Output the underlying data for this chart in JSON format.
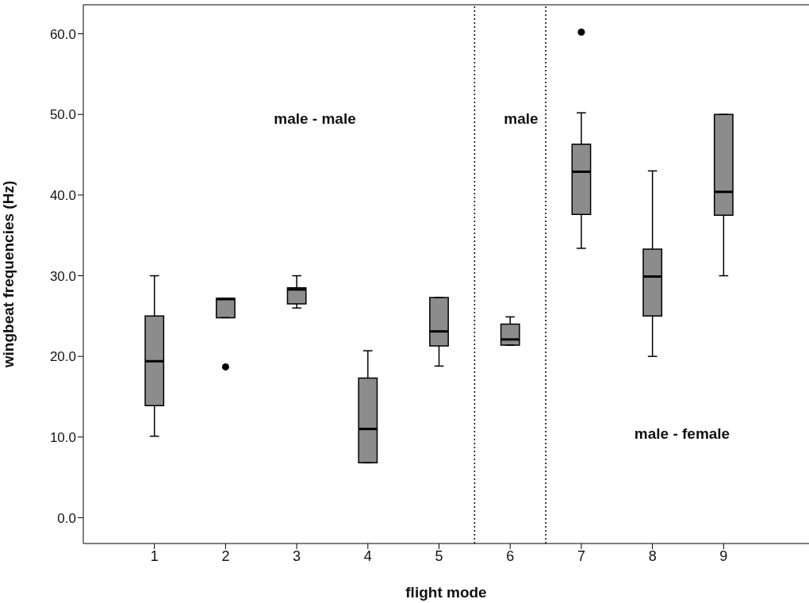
{
  "chart_data": {
    "type": "box",
    "xlabel": "flight mode",
    "ylabel": "wingbeat frequencies (Hz)",
    "x": [
      1,
      2,
      3,
      4,
      5,
      6,
      7,
      8,
      9
    ],
    "color": "#8c8c8c",
    "boxes": [
      {
        "low": 10.1,
        "q1": 13.9,
        "median": 19.4,
        "q3": 25.0,
        "high": 30.0
      },
      {
        "low": 24.8,
        "q1": 24.8,
        "median": 27.1,
        "q3": 27.2,
        "high": 27.2,
        "outliers": [
          18.7
        ]
      },
      {
        "low": 26.0,
        "q1": 26.5,
        "median": 28.3,
        "q3": 28.5,
        "high": 30.0
      },
      {
        "low": 6.8,
        "q1": 6.8,
        "median": 11.0,
        "q3": 17.3,
        "high": 20.7
      },
      {
        "low": 18.8,
        "q1": 21.3,
        "median": 23.1,
        "q3": 27.3,
        "high": 27.3
      },
      {
        "low": 21.4,
        "q1": 21.4,
        "median": 22.1,
        "q3": 24.0,
        "high": 24.9
      },
      {
        "low": 33.4,
        "q1": 37.6,
        "median": 42.9,
        "q3": 46.3,
        "high": 50.2,
        "outliers": [
          60.2
        ]
      },
      {
        "low": 20.0,
        "q1": 25.0,
        "median": 29.9,
        "q3": 33.3,
        "high": 43.0
      },
      {
        "low": 30.0,
        "q1": 37.5,
        "median": 40.4,
        "q3": 50.0,
        "high": 50.0
      }
    ],
    "xlim": [
      0,
      10.2
    ],
    "xticks": [
      1,
      2,
      3,
      4,
      5,
      6,
      7,
      8,
      9
    ],
    "ylim": [
      -3.2,
      63.6
    ],
    "yticks": [
      {
        "value": 0,
        "label": "0.0"
      },
      {
        "value": 10,
        "label": "10.0"
      },
      {
        "value": 20,
        "label": "20.0"
      },
      {
        "value": 30,
        "label": "30.0"
      },
      {
        "value": 40,
        "label": "40.0"
      },
      {
        "value": 50,
        "label": "50.0"
      },
      {
        "value": 60,
        "label": "60.0"
      }
    ],
    "ref_lines": [
      {
        "axis": "x",
        "value": 5.5,
        "line_style": "dotted"
      },
      {
        "axis": "x",
        "value": 6.5,
        "line_style": "dotted"
      }
    ],
    "annotations": [
      "male - male",
      "male",
      "male - female"
    ],
    "marker": "circle"
  }
}
